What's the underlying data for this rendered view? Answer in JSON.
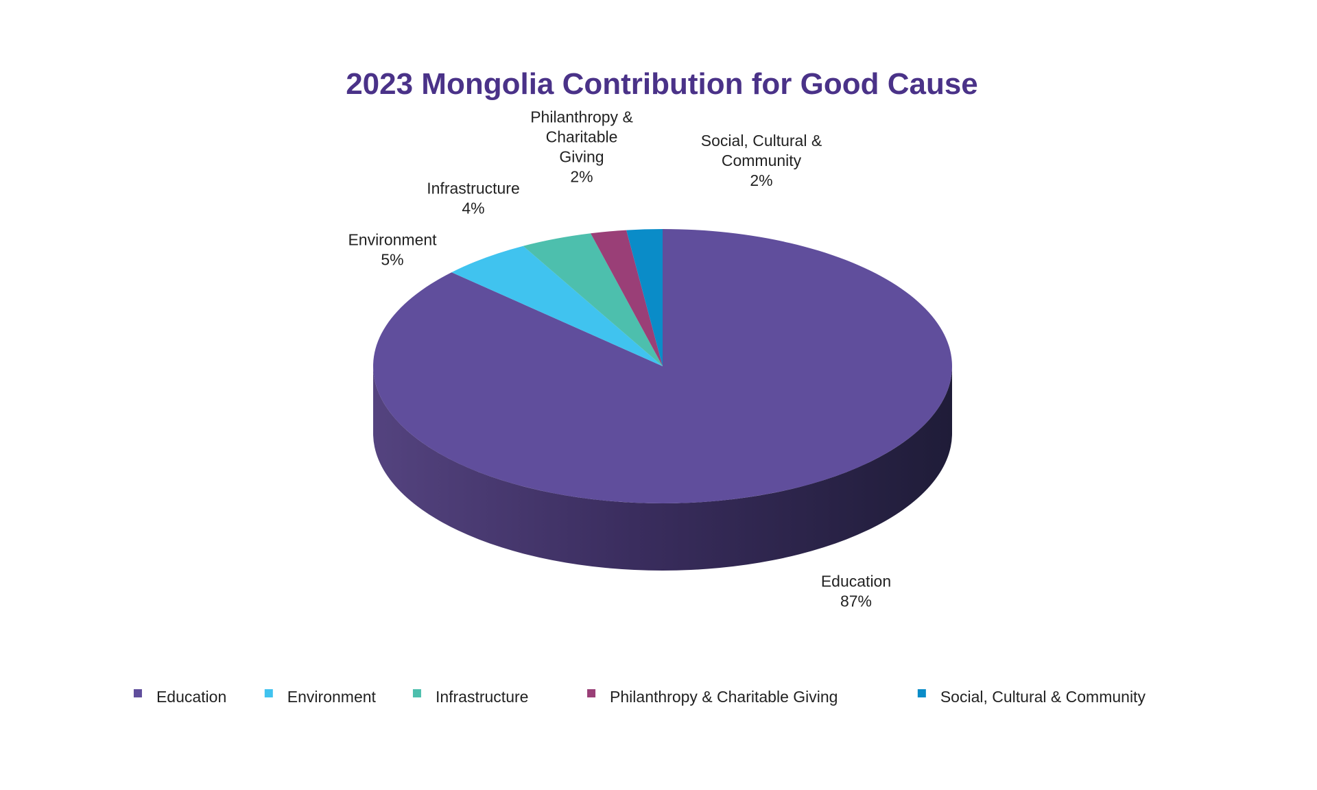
{
  "colors": {
    "title": "#4a3288",
    "label_text": "#222222",
    "background": "#ffffff"
  },
  "chart_data": {
    "type": "pie",
    "style": "3d",
    "title": "2023 Mongolia Contribution for Good Cause",
    "legend_position": "bottom",
    "slices": [
      {
        "label": "Education",
        "value": 87,
        "display": "87%",
        "color": "#604e9c",
        "label_lines": [
          "Education",
          "87%"
        ]
      },
      {
        "label": "Environment",
        "value": 5,
        "display": "5%",
        "color": "#40c3ef",
        "label_lines": [
          "Environment",
          "5%"
        ]
      },
      {
        "label": "Infrastructure",
        "value": 4,
        "display": "4%",
        "color": "#4dbfad",
        "label_lines": [
          "Infrastructure",
          "4%"
        ]
      },
      {
        "label": "Philanthropy & Charitable Giving",
        "value": 2,
        "display": "2%",
        "color": "#9a3f77",
        "label_lines": [
          "Philanthropy &",
          "Charitable",
          "Giving",
          "2%"
        ]
      },
      {
        "label": "Social, Cultural & Community",
        "value": 2,
        "display": "2%",
        "color": "#0a8cc8",
        "label_lines": [
          "Social, Cultural &",
          "Community",
          "2%"
        ]
      }
    ]
  }
}
